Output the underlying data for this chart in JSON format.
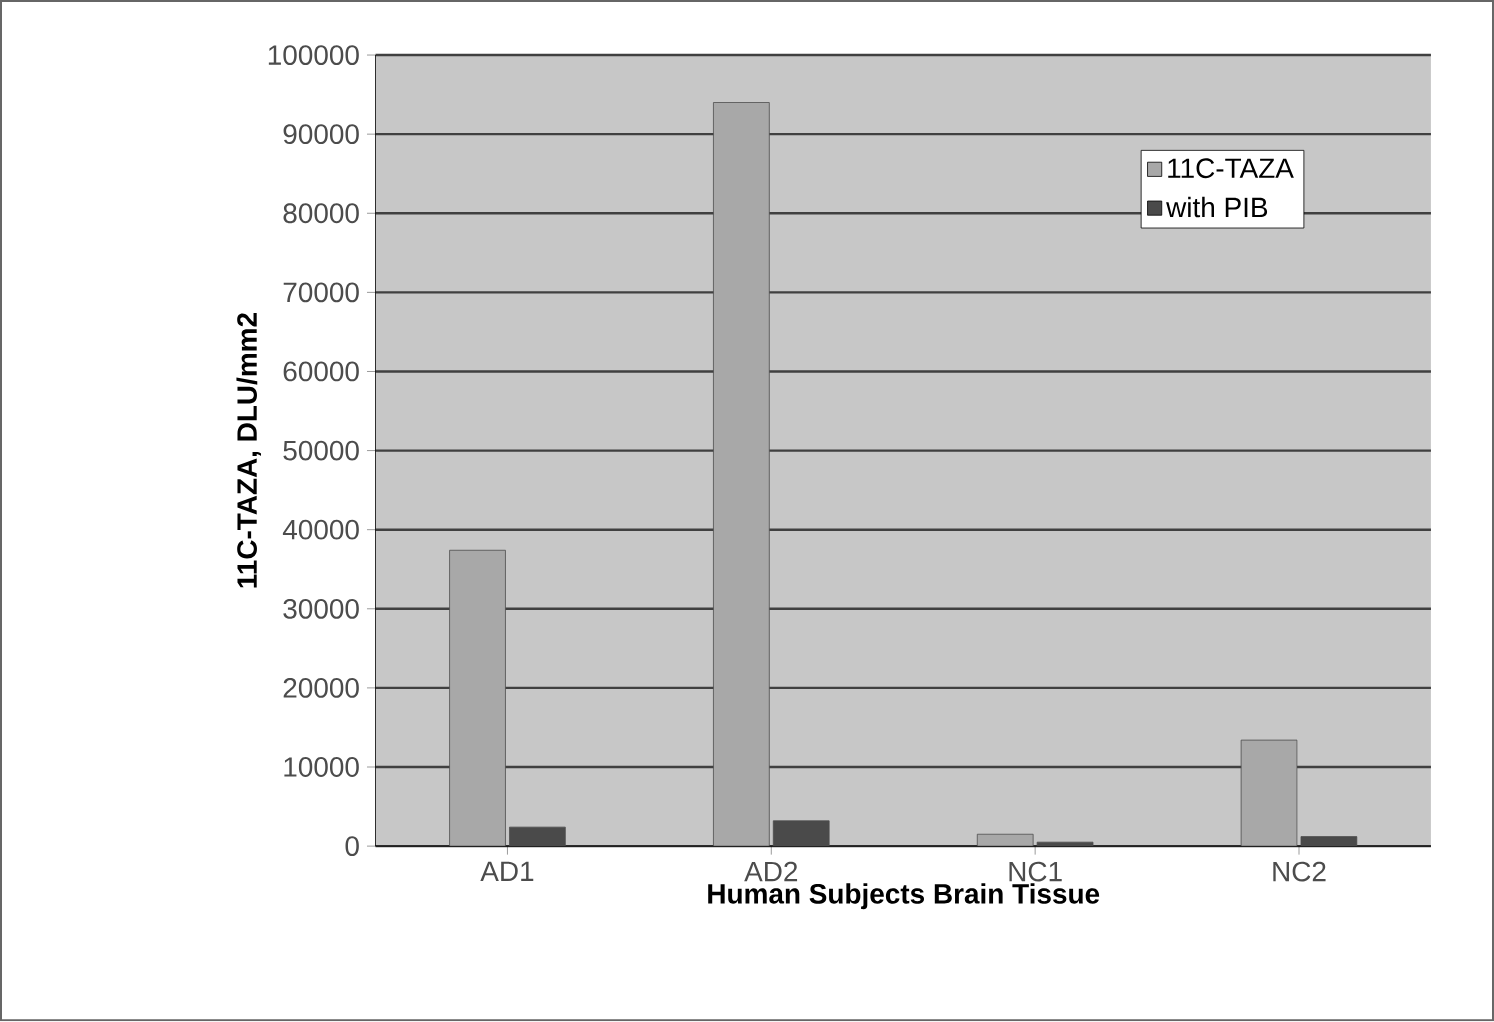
{
  "chart_data": {
    "type": "bar",
    "xlabel": "Human Subjects Brain Tissue",
    "ylabel": "11C-TAZA, DLU/mm2",
    "categories": [
      "AD1",
      "AD2",
      "NC1",
      "NC2"
    ],
    "series": [
      {
        "name": "11C-TAZA",
        "color": "#a8a8a8",
        "values": [
          37400,
          94000,
          1500,
          13400
        ]
      },
      {
        "name": "with PIB",
        "color": "#4a4a4a",
        "values": [
          2400,
          3200,
          500,
          1200
        ]
      }
    ],
    "ylim": [
      0,
      100000
    ],
    "yticks": [
      0,
      10000,
      20000,
      30000,
      40000,
      50000,
      60000,
      70000,
      80000,
      90000,
      100000
    ],
    "grid": "y",
    "legend": "top right"
  }
}
